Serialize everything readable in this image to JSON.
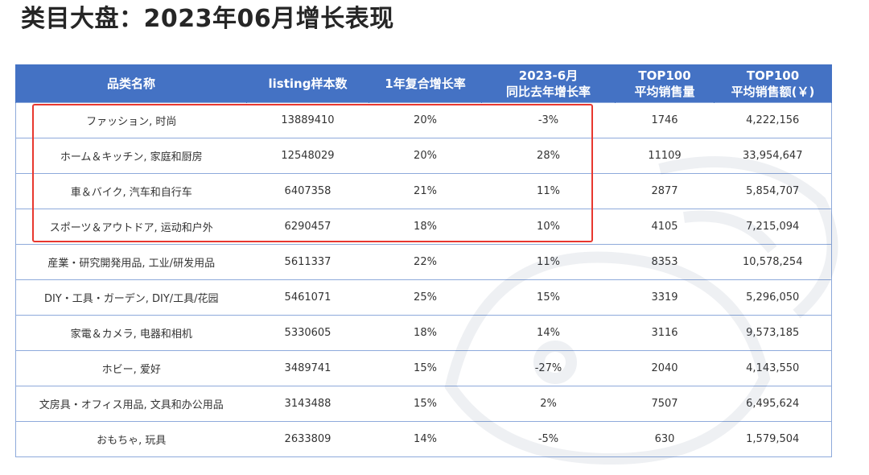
{
  "title": "类目大盘：2023年06月增长表现",
  "table": {
    "headers": [
      [
        "品类名称"
      ],
      [
        "listing样本数"
      ],
      [
        "1年复合增长率"
      ],
      [
        "2023-6月",
        "同比去年增长率"
      ],
      [
        "TOP100",
        "平均销售量"
      ],
      [
        "TOP100",
        "平均销售额(￥)"
      ]
    ],
    "rows": [
      [
        "ファッション, 时尚",
        "13889410",
        "20%",
        "-3%",
        "1746",
        "4,222,156"
      ],
      [
        "ホーム＆キッチン, 家庭和厨房",
        "12548029",
        "20%",
        "28%",
        "11109",
        "33,954,647"
      ],
      [
        "車＆バイク, 汽车和自行车",
        "6407358",
        "21%",
        "11%",
        "2877",
        "5,854,707"
      ],
      [
        "スポーツ＆アウトドア, 运动和户外",
        "6290457",
        "18%",
        "10%",
        "4105",
        "7,215,094"
      ],
      [
        "産業・研究開発用品, 工业/研发用品",
        "5611337",
        "22%",
        "11%",
        "8353",
        "10,578,254"
      ],
      [
        "DIY・工具・ガーデン, DIY/工具/花园",
        "5461071",
        "25%",
        "15%",
        "3319",
        "5,296,050"
      ],
      [
        "家電＆カメラ, 电器和相机",
        "5330605",
        "18%",
        "14%",
        "3116",
        "9,573,185"
      ],
      [
        "ホビー, 爱好",
        "3489741",
        "15%",
        "-27%",
        "2040",
        "4,143,550"
      ],
      [
        "文房具・オフィス用品, 文具和办公用品",
        "3143488",
        "15%",
        "2%",
        "7507",
        "6,495,624"
      ],
      [
        "おもちゃ, 玩具",
        "2633809",
        "14%",
        "-5%",
        "630",
        "1,579,504"
      ]
    ]
  },
  "colors": {
    "header_bg": "#4472c4",
    "header_text": "#ffffff",
    "border": "#8eaadb",
    "highlight": "#e8382f"
  }
}
